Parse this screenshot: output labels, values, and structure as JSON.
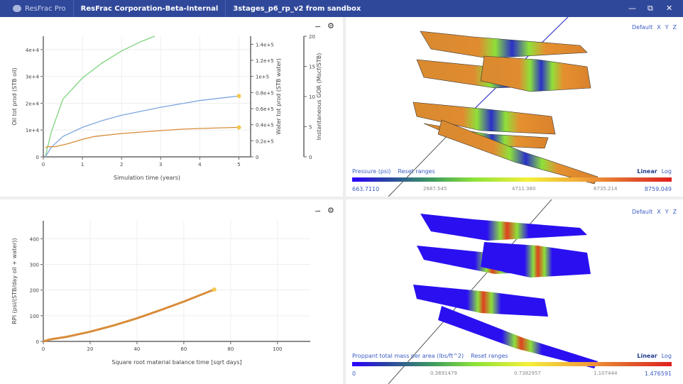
{
  "titlebar": {
    "app": "ResFrac Pro",
    "org": "ResFrac Corporation-Beta-Internal",
    "project": "3stages_p6_rp_v2 from sandbox",
    "controls": [
      "minimize-icon",
      "restore-icon",
      "close-icon"
    ]
  },
  "colors": {
    "titlebar": "#30489a",
    "series_green": "#7ed47e",
    "series_blue": "#7fa6e0",
    "series_orange": "#d98c3a",
    "marker": "#f2c94c",
    "link": "#3b5cc4"
  },
  "top_left": {
    "tools": [
      "line-chart-icon",
      "gear-icon"
    ]
  },
  "bottom_left": {
    "tools": [
      "line-chart-icon",
      "gear-icon"
    ]
  },
  "top_right": {
    "view": {
      "default": "Default",
      "x": "X",
      "y": "Y",
      "z": "Z"
    },
    "legend": {
      "label": "Pressure (psi)",
      "reset": "Reset ranges",
      "linear": "Linear",
      "log": "Log",
      "min": "663.7110",
      "t1": "2687.545",
      "t2": "4711.380",
      "t3": "6735.214",
      "max": "8759.049"
    }
  },
  "bottom_right": {
    "view": {
      "default": "Default",
      "x": "X",
      "y": "Y",
      "z": "Z"
    },
    "legend": {
      "label": "Proppant total mass per area (lbs/ft^2)",
      "reset": "Reset ranges",
      "linear": "Linear",
      "log": "Log",
      "min": "0",
      "t1": "0.3691479",
      "t2": "0.7382957",
      "t3": "1.107444",
      "max": "1.476591"
    }
  },
  "chart_data": [
    {
      "type": "line",
      "xlabel": "Simulation time (years)",
      "xlim": [
        0,
        5.3
      ],
      "xticks": [
        "0",
        "1",
        "2",
        "3",
        "4",
        "5"
      ],
      "ylabel": "Oil tot prod (STB oil)",
      "ylim": [
        0,
        45000
      ],
      "yticks": [
        "0",
        "1e+4",
        "2e+4",
        "3e+4",
        "4e+4"
      ],
      "y2label": "Water tot prod (STB water)",
      "y2lim": [
        0,
        150000
      ],
      "y2ticks": [
        "0",
        "0.2e+5",
        "0.4e+5",
        "0.6e+5",
        "0.8e+5",
        "1e+5",
        "1.2e+5",
        "1.4e+5"
      ],
      "y3label": "Instantaneous GOR (Mscf/STB)",
      "y3lim": [
        0,
        20
      ],
      "y3ticks": [
        "0",
        "5",
        "10",
        "15",
        "20"
      ],
      "grid": true,
      "series": [
        {
          "color": "#7ed47e",
          "x": [
            0.05,
            0.2,
            0.5,
            1,
            1.5,
            2,
            2.5,
            2.85
          ],
          "y": [
            0,
            9000,
            21500,
            29400,
            35000,
            39500,
            43000,
            45000
          ]
        },
        {
          "color": "#7fa6e0",
          "x": [
            0.05,
            0.2,
            0.5,
            1,
            1.5,
            2,
            3,
            4,
            5
          ],
          "y": [
            0,
            3500,
            7600,
            11000,
            13500,
            15500,
            18500,
            21000,
            22700
          ],
          "end_marker": true
        },
        {
          "color": "#d98c3a",
          "x": [
            0.05,
            0.1,
            0.3,
            0.6,
            1,
            1.3,
            2,
            3,
            3.5,
            4,
            5
          ],
          "y": [
            3300,
            3800,
            3800,
            4800,
            6500,
            7600,
            8700,
            9800,
            10300,
            10600,
            11000
          ],
          "end_marker": true
        }
      ]
    },
    {
      "type": "line",
      "xlabel": "Square root material balance time [sqrt days]",
      "xlim": [
        0,
        114
      ],
      "xticks": [
        "0",
        "20",
        "40",
        "60",
        "80",
        "100"
      ],
      "ylabel": "RPI (psi/(STB/day oil + water))",
      "ylim": [
        0,
        470
      ],
      "yticks": [
        "0",
        "100",
        "200",
        "300",
        "400"
      ],
      "grid": true,
      "series": [
        {
          "color": "#d98c3a",
          "x": [
            0,
            3,
            10,
            20,
            30,
            40,
            50,
            60,
            73
          ],
          "y": [
            0,
            8,
            18,
            38,
            62,
            90,
            122,
            155,
            202
          ],
          "end_marker": true
        }
      ]
    }
  ]
}
